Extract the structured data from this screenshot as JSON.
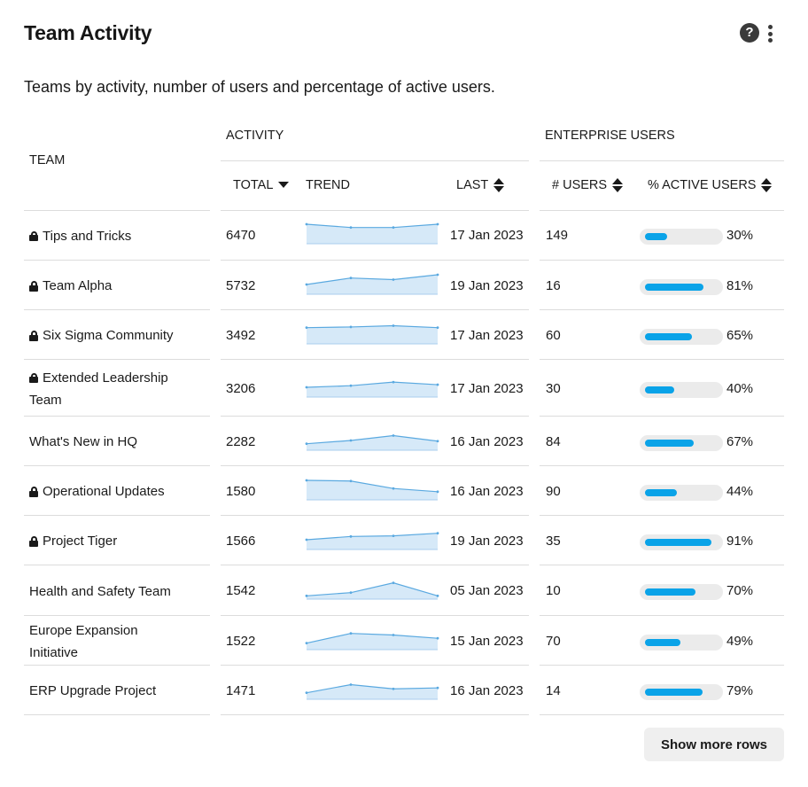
{
  "header": {
    "title": "Team Activity",
    "help_icon": "question-circle-icon",
    "help_glyph": "?",
    "menu_icon": "vertical-ellipsis-icon"
  },
  "subtitle": "Teams by activity, number of users and percentage of active users.",
  "table": {
    "group_headers": {
      "activity": "ACTIVITY",
      "enterprise_users": "ENTERPRISE USERS"
    },
    "columns": {
      "team": "TEAM",
      "total": "TOTAL",
      "trend": "TREND",
      "last": "LAST",
      "users": "# USERS",
      "active": "% ACTIVE USERS"
    },
    "sort": {
      "total": "descending",
      "last": "sortable",
      "users": "sortable",
      "active": "sortable"
    },
    "rows": [
      {
        "team": "Tips and Tricks",
        "private": true,
        "total": "6470",
        "last": "17 Jan 2023",
        "users": "149",
        "active_pct": 30,
        "active_label": "30%",
        "trend": [
          6,
          5,
          5,
          6
        ]
      },
      {
        "team": "Team Alpha",
        "private": true,
        "total": "5732",
        "last": "19 Jan 2023",
        "users": "16",
        "active_pct": 81,
        "active_label": "81%",
        "trend": [
          3,
          5,
          4.5,
          6
        ]
      },
      {
        "team": "Six Sigma Community",
        "private": true,
        "total": "3492",
        "last": "17 Jan 2023",
        "users": "60",
        "active_pct": 65,
        "active_label": "65%",
        "trend": [
          5,
          5.2,
          5.6,
          5
        ]
      },
      {
        "team": "Extended Leadership Team",
        "private": true,
        "total": "3206",
        "last": "17 Jan 2023",
        "users": "30",
        "active_pct": 40,
        "active_label": "40%",
        "trend": [
          3,
          3.5,
          4.6,
          3.8
        ]
      },
      {
        "team": "What's New in HQ",
        "private": false,
        "total": "2282",
        "last": "16 Jan 2023",
        "users": "84",
        "active_pct": 67,
        "active_label": "67%",
        "trend": [
          2,
          3,
          4.5,
          2.8
        ]
      },
      {
        "team": "Operational Updates",
        "private": true,
        "total": "1580",
        "last": "16 Jan 2023",
        "users": "90",
        "active_pct": 44,
        "active_label": "44%",
        "trend": [
          6,
          5.8,
          3.5,
          2.5
        ]
      },
      {
        "team": "Project Tiger",
        "private": true,
        "total": "1566",
        "last": "19 Jan 2023",
        "users": "35",
        "active_pct": 91,
        "active_label": "91%",
        "trend": [
          3,
          4,
          4.2,
          5
        ]
      },
      {
        "team": "Health and Safety Team",
        "private": false,
        "total": "1542",
        "last": "05 Jan 2023",
        "users": "10",
        "active_pct": 70,
        "active_label": "70%",
        "trend": [
          1,
          2,
          5,
          1
        ]
      },
      {
        "team": "Europe Expansion Initiative",
        "private": false,
        "total": "1522",
        "last": "15 Jan 2023",
        "users": "70",
        "active_pct": 49,
        "active_label": "49%",
        "trend": [
          2,
          5,
          4.5,
          3.5
        ]
      },
      {
        "team": "ERP Upgrade Project",
        "private": false,
        "total": "1471",
        "last": "16 Jan 2023",
        "users": "14",
        "active_pct": 79,
        "active_label": "79%",
        "trend": [
          2,
          4.5,
          3.2,
          3.5
        ]
      }
    ]
  },
  "footer": {
    "show_more_label": "Show more rows"
  },
  "colors": {
    "bar_fill": "#0aa3e8",
    "bar_track": "#ebebeb",
    "spark_line": "#5aa9e0",
    "spark_fill": "#d6e9f8"
  }
}
